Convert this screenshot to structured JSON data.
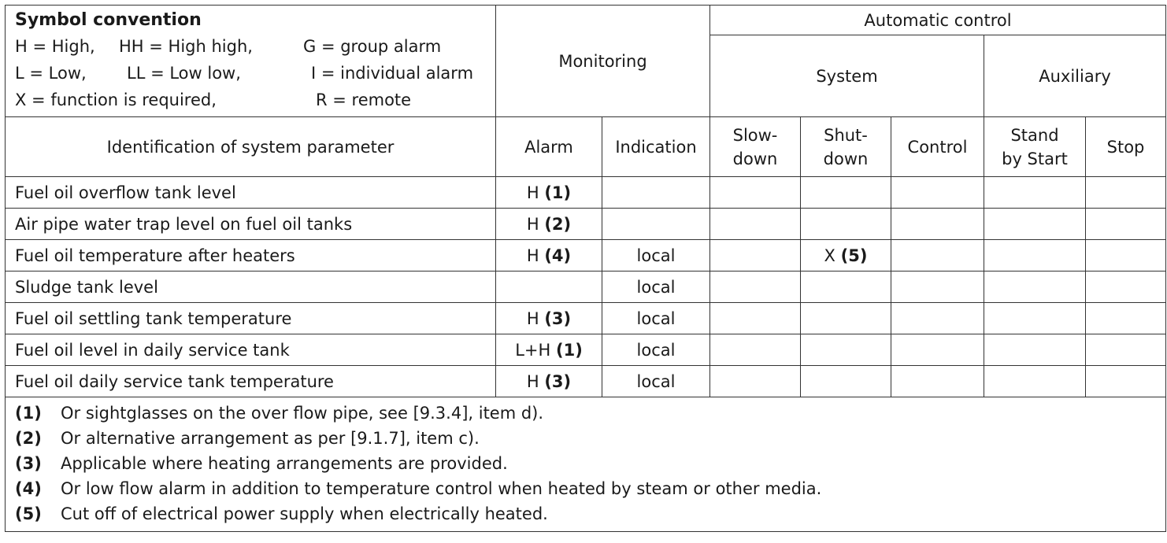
{
  "legend": {
    "title": "Symbol convention",
    "line1": [
      "H = High,",
      "HH = High high,",
      "G = group alarm"
    ],
    "line2": [
      "L = Low,",
      "LL = Low low,",
      "I = individual alarm"
    ],
    "line3": [
      "X =  function is required,",
      "R = remote"
    ]
  },
  "headers": {
    "monitoring": "Monitoring",
    "automatic_control": "Automatic control",
    "system": "System",
    "auxiliary": "Auxiliary",
    "parameter": "Identification of system parameter",
    "alarm": "Alarm",
    "indication": "Indication",
    "slowdown_1": "Slow-",
    "slowdown_2": "down",
    "shutdown_1": "Shut-",
    "shutdown_2": "down",
    "control": "Control",
    "standby_1": "Stand",
    "standby_2": "by Start",
    "stop": "Stop"
  },
  "rows": [
    {
      "param": "Fuel oil overflow tank level",
      "alarm": "H",
      "alarm_note": "(1)",
      "indication": "",
      "shutdown": "",
      "shutdown_note": ""
    },
    {
      "param": "Air pipe water trap level on fuel oil tanks",
      "alarm": "H",
      "alarm_note": "(2)",
      "indication": "",
      "shutdown": "",
      "shutdown_note": ""
    },
    {
      "param": "Fuel oil temperature after heaters",
      "alarm": "H",
      "alarm_note": "(4)",
      "indication": "local",
      "shutdown": "X",
      "shutdown_note": "(5)"
    },
    {
      "param": "Sludge tank level",
      "alarm": "",
      "alarm_note": "",
      "indication": "local",
      "shutdown": "",
      "shutdown_note": ""
    },
    {
      "param": "Fuel oil settling tank temperature",
      "alarm": "H",
      "alarm_note": "(3)",
      "indication": "local",
      "shutdown": "",
      "shutdown_note": ""
    },
    {
      "param": "Fuel oil level in daily service tank",
      "alarm": "L+H",
      "alarm_note": "(1)",
      "indication": "local",
      "shutdown": "",
      "shutdown_note": ""
    },
    {
      "param": "Fuel oil daily service tank temperature",
      "alarm": "H",
      "alarm_note": "(3)",
      "indication": "local",
      "shutdown": "",
      "shutdown_note": ""
    }
  ],
  "notes": [
    {
      "num": "(1)",
      "text": "Or sightglasses on the over flow pipe, see [9.3.4], item d)."
    },
    {
      "num": "(2)",
      "text": "Or alternative arrangement as per [9.1.7], item c)."
    },
    {
      "num": "(3)",
      "text": "Applicable where heating arrangements are provided."
    },
    {
      "num": "(4)",
      "text": "Or low flow alarm in addition to temperature control when heated by steam or other media."
    },
    {
      "num": "(5)",
      "text": "Cut off of electrical power supply when electrically heated."
    }
  ]
}
